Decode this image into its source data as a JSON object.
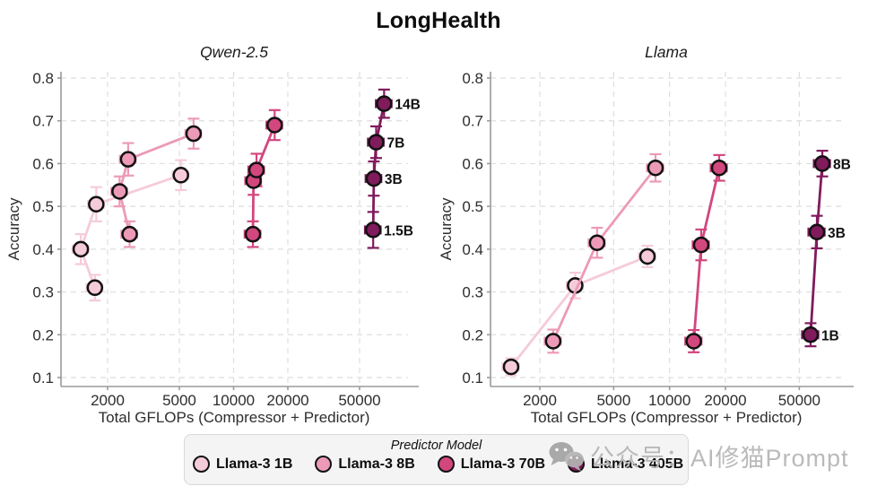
{
  "title": "LongHealth",
  "watermark": {
    "text": "公众号：AI修猫Prompt",
    "icon": "wechat-icon",
    "color": "#b5b5b5"
  },
  "legend": {
    "title": "Predictor Model",
    "entries": [
      {
        "label": "Llama-3 1B",
        "color": "#f5cbda"
      },
      {
        "label": "Llama-3 8B",
        "color": "#ec9ab8"
      },
      {
        "label": "Llama-3 70B",
        "color": "#d2477e"
      },
      {
        "label": "Llama-3 405B",
        "color": "#801b5c"
      }
    ]
  },
  "chart_data": [
    {
      "type": "scatter",
      "title": "Qwen-2.5",
      "xlabel": "Total GFLOPs (Compressor + Predictor)",
      "ylabel": "Accuracy",
      "xscale": "log",
      "grid": true,
      "xlim": [
        1100,
        93000
      ],
      "ylim": [
        0.1,
        0.8
      ],
      "xticks": [
        2000,
        5000,
        10000,
        20000,
        50000
      ],
      "yticks": [
        0.1,
        0.2,
        0.3,
        0.4,
        0.5,
        0.6,
        0.7,
        0.8
      ],
      "xerr_frac": 0.1,
      "compressor_sizes": [
        "1.5B",
        "3B",
        "7B",
        "14B"
      ],
      "series": [
        {
          "name": "Llama-3 1B",
          "color": "#f5cbda",
          "points": [
            {
              "x": 1700,
              "y": 0.31,
              "yerr": 0.03
            },
            {
              "x": 1420,
              "y": 0.4,
              "yerr": 0.035
            },
            {
              "x": 1730,
              "y": 0.505,
              "yerr": 0.04
            },
            {
              "x": 5100,
              "y": 0.573,
              "yerr": 0.035
            }
          ]
        },
        {
          "name": "Llama-3 8B",
          "color": "#ec9ab8",
          "points": [
            {
              "x": 2650,
              "y": 0.435,
              "yerr": 0.03
            },
            {
              "x": 2330,
              "y": 0.535,
              "yerr": 0.035
            },
            {
              "x": 2600,
              "y": 0.61,
              "yerr": 0.038
            },
            {
              "x": 6000,
              "y": 0.67,
              "yerr": 0.035
            }
          ]
        },
        {
          "name": "Llama-3 70B",
          "color": "#d2477e",
          "points": [
            {
              "x": 12800,
              "y": 0.435,
              "yerr": 0.03
            },
            {
              "x": 12900,
              "y": 0.56,
              "yerr": 0.033
            },
            {
              "x": 13400,
              "y": 0.585,
              "yerr": 0.038
            },
            {
              "x": 16900,
              "y": 0.69,
              "yerr": 0.035
            }
          ]
        },
        {
          "name": "Llama-3 405B",
          "color": "#801b5c",
          "points": [
            {
              "x": 59500,
              "y": 0.445,
              "yerr": 0.042,
              "label": "1.5B"
            },
            {
              "x": 60000,
              "y": 0.565,
              "yerr": 0.04,
              "label": "3B"
            },
            {
              "x": 61800,
              "y": 0.65,
              "yerr": 0.037,
              "label": "7B"
            },
            {
              "x": 68400,
              "y": 0.74,
              "yerr": 0.033,
              "label": "14B"
            }
          ]
        }
      ]
    },
    {
      "type": "scatter",
      "title": "Llama",
      "xlabel": "Total GFLOPs (Compressor + Predictor)",
      "ylabel": "Accuracy",
      "xscale": "log",
      "grid": true,
      "xlim": [
        1080,
        86000
      ],
      "ylim": [
        0.1,
        0.8
      ],
      "xticks": [
        2000,
        5000,
        10000,
        20000,
        50000
      ],
      "yticks": [
        0.1,
        0.2,
        0.3,
        0.4,
        0.5,
        0.6,
        0.7,
        0.8
      ],
      "xerr_frac": 0.1,
      "compressor_sizes": [
        "1B",
        "3B",
        "8B"
      ],
      "series": [
        {
          "name": "Llama-3 1B",
          "color": "#f5cbda",
          "points": [
            {
              "x": 1400,
              "y": 0.125,
              "yerr": 0.02
            },
            {
              "x": 3100,
              "y": 0.315,
              "yerr": 0.03
            },
            {
              "x": 7600,
              "y": 0.383,
              "yerr": 0.025
            }
          ]
        },
        {
          "name": "Llama-3 8B",
          "color": "#ec9ab8",
          "points": [
            {
              "x": 2360,
              "y": 0.185,
              "yerr": 0.027
            },
            {
              "x": 4070,
              "y": 0.415,
              "yerr": 0.035
            },
            {
              "x": 8400,
              "y": 0.59,
              "yerr": 0.032
            }
          ]
        },
        {
          "name": "Llama-3 70B",
          "color": "#d2477e",
          "points": [
            {
              "x": 13500,
              "y": 0.185,
              "yerr": 0.026
            },
            {
              "x": 14800,
              "y": 0.41,
              "yerr": 0.036
            },
            {
              "x": 18500,
              "y": 0.59,
              "yerr": 0.03
            }
          ]
        },
        {
          "name": "Llama-3 405B",
          "color": "#801b5c",
          "points": [
            {
              "x": 57500,
              "y": 0.2,
              "yerr": 0.027,
              "label": "1B"
            },
            {
              "x": 62200,
              "y": 0.44,
              "yerr": 0.038,
              "label": "3B"
            },
            {
              "x": 66500,
              "y": 0.6,
              "yerr": 0.03,
              "label": "8B"
            }
          ]
        }
      ]
    }
  ]
}
